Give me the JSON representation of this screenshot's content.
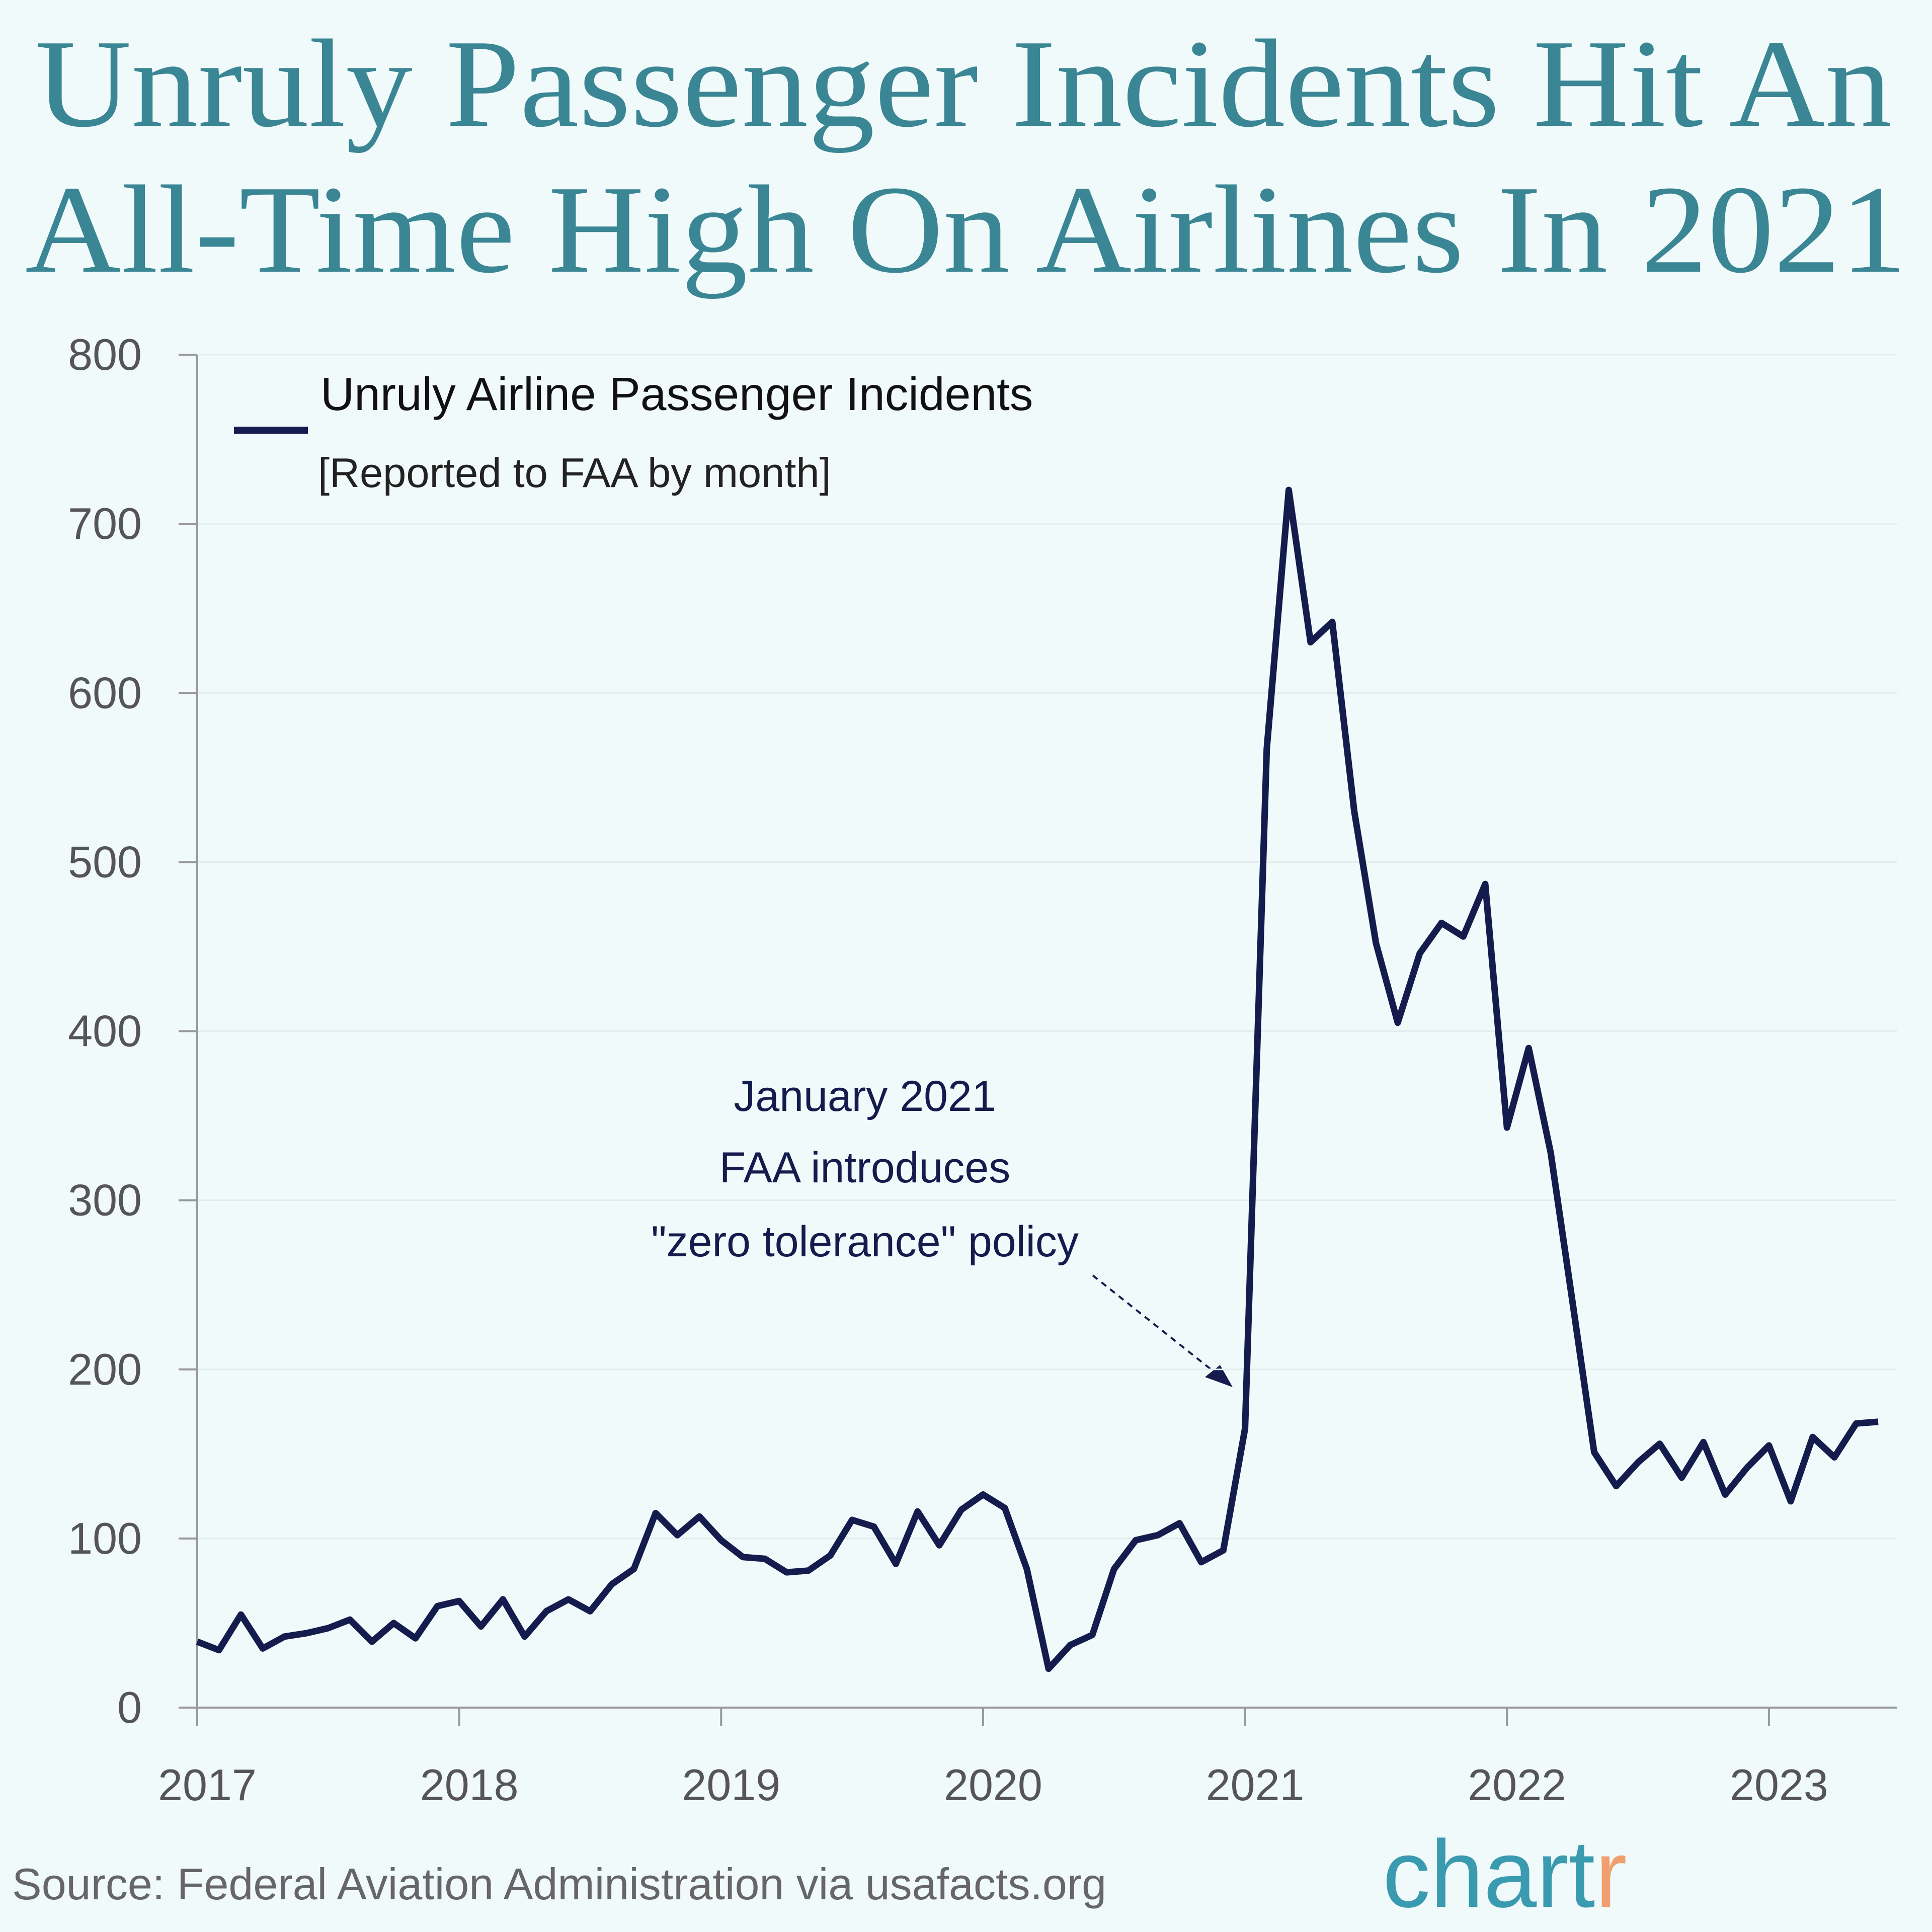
{
  "chart_data": {
    "type": "line",
    "title": [
      "Unruly Passenger Incidents Hit An",
      "All-Time High On Airlines In 2021"
    ],
    "subtitle": "[Reported to FAA by month]",
    "annotation": [
      "January 2021",
      "FAA introduces",
      "\"zero tolerance\" policy"
    ],
    "source": "Source: Federal Aviation Administration via usafacts.org",
    "brand": {
      "main": "chart",
      "accent": "r"
    },
    "x": [
      2017,
      2017.083,
      2017.167,
      2017.25,
      2017.333,
      2017.417,
      2017.5,
      2017.583,
      2017.667,
      2017.75,
      2017.833,
      2017.917,
      2018,
      2018.083,
      2018.167,
      2018.25,
      2018.333,
      2018.417,
      2018.5,
      2018.583,
      2018.667,
      2018.75,
      2018.833,
      2018.917,
      2019,
      2019.083,
      2019.167,
      2019.25,
      2019.333,
      2019.417,
      2019.5,
      2019.583,
      2019.667,
      2019.75,
      2019.833,
      2019.917,
      2020,
      2020.083,
      2020.167,
      2020.25,
      2020.333,
      2020.417,
      2020.5,
      2020.583,
      2020.667,
      2020.75,
      2020.833,
      2020.917,
      2021,
      2021.083,
      2021.167,
      2021.25,
      2021.333,
      2021.417,
      2021.5,
      2021.583,
      2021.667,
      2021.75,
      2021.833,
      2021.917,
      2022,
      2022.083,
      2022.167,
      2022.25,
      2022.333,
      2022.417,
      2022.5,
      2022.583,
      2022.667,
      2022.75,
      2022.833,
      2022.917,
      2023,
      2023.083,
      2023.167,
      2023.25,
      2023.333,
      2023.417
    ],
    "series": [
      {
        "name": "Unruly Airline Passenger Incidents",
        "color": "#141b4d",
        "values": [
          39,
          34,
          55,
          35,
          42,
          44,
          47,
          52,
          39,
          50,
          41,
          60,
          63,
          48,
          64,
          42,
          57,
          64,
          57,
          73,
          82,
          115,
          102,
          113,
          99,
          89,
          88,
          80,
          81,
          90,
          111,
          107,
          85,
          116,
          96,
          117,
          126,
          118,
          82,
          23,
          37,
          43,
          82,
          99,
          102,
          109,
          86,
          93,
          165,
          567,
          720,
          630,
          642,
          530,
          452,
          405,
          446,
          464,
          456,
          487,
          343,
          390,
          328,
          240,
          151,
          131,
          145,
          156,
          136,
          157,
          126,
          142,
          155,
          122,
          160,
          148,
          168,
          169
        ]
      }
    ],
    "xlim": [
      2017,
      2023.49
    ],
    "xticks": [
      2017,
      2018,
      2019,
      2020,
      2021,
      2022,
      2023
    ],
    "ylim": [
      0,
      800
    ],
    "yticks": [
      0,
      100,
      200,
      300,
      400,
      500,
      600,
      700,
      800
    ],
    "grid": true
  }
}
